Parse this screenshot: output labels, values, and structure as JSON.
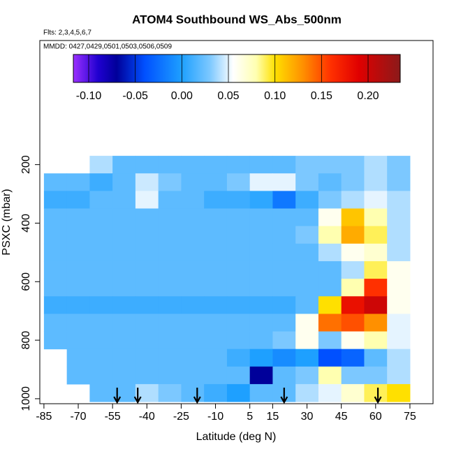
{
  "chart_data": {
    "type": "heatmap",
    "title": "ATOM4 Southbound WS_Abs_500nm",
    "annotations": [
      "Flts: 2,3,4,5,6,7",
      "MMDD: 0427,0429,0501,0503,0506,0509"
    ],
    "x_label": "Latitude (deg N)",
    "y_label": "PSXC (mbar)",
    "xlim": [
      -86.8,
      85.1
    ],
    "xticks": [
      -85,
      -70,
      -55,
      -40,
      -25,
      -10,
      5,
      15,
      30,
      45,
      60,
      75
    ],
    "ylim": [
      1017,
      -224
    ],
    "yticks": [
      200,
      400,
      600,
      800,
      1000
    ],
    "xbins": [
      -85,
      -75,
      -65,
      -55,
      -45,
      -35,
      -25,
      -15,
      -5,
      5,
      15,
      25,
      35,
      45,
      55,
      65,
      75
    ],
    "ybins": [
      170,
      230,
      290,
      350,
      410,
      470,
      530,
      590,
      650,
      710,
      770,
      830,
      890,
      950,
      1010
    ],
    "z": [
      [
        null,
        null,
        0.04,
        0.02,
        0.02,
        0.02,
        0.02,
        0.02,
        0.02,
        0.02,
        0.02,
        0.03,
        0.03,
        0.03,
        0.04,
        0.03
      ],
      [
        0.02,
        0.02,
        0.01,
        0.02,
        0.045,
        0.03,
        0.02,
        0.02,
        0.03,
        0.05,
        0.05,
        0.03,
        0.02,
        0.03,
        0.04,
        0.03
      ],
      [
        0.01,
        0.01,
        0.02,
        0.02,
        0.05,
        0.02,
        0.02,
        0.01,
        0.01,
        0.005,
        -0.02,
        0.01,
        0.03,
        0.04,
        0.05,
        0.04
      ],
      [
        0.02,
        0.02,
        0.02,
        0.02,
        0.02,
        0.02,
        0.02,
        0.02,
        0.02,
        0.02,
        0.02,
        0.02,
        0.06,
        0.11,
        0.08,
        0.04
      ],
      [
        0.02,
        0.02,
        0.02,
        0.02,
        0.02,
        0.02,
        0.02,
        0.02,
        0.02,
        0.02,
        0.02,
        0.03,
        0.08,
        0.12,
        0.09,
        0.04
      ],
      [
        0.02,
        0.02,
        0.02,
        0.02,
        0.02,
        0.02,
        0.02,
        0.02,
        0.02,
        0.02,
        0.02,
        0.02,
        0.04,
        0.06,
        0.07,
        0.04
      ],
      [
        0.02,
        0.02,
        0.02,
        0.02,
        0.02,
        0.02,
        0.02,
        0.02,
        0.02,
        0.02,
        0.02,
        0.02,
        0.02,
        0.04,
        0.09,
        0.06
      ],
      [
        0.02,
        0.02,
        0.02,
        0.02,
        0.02,
        0.02,
        0.02,
        0.02,
        0.02,
        0.02,
        0.02,
        0.02,
        0.02,
        0.08,
        0.16,
        0.06
      ],
      [
        0.01,
        0.01,
        0.01,
        0.01,
        0.01,
        0.01,
        0.01,
        0.01,
        0.01,
        0.01,
        0.01,
        0.02,
        0.1,
        0.18,
        0.2,
        0.06
      ],
      [
        0.02,
        0.02,
        0.02,
        0.02,
        0.02,
        0.02,
        0.02,
        0.02,
        0.02,
        0.02,
        0.02,
        0.06,
        0.14,
        0.15,
        0.13,
        0.05
      ],
      [
        0.02,
        0.02,
        0.02,
        0.02,
        0.02,
        0.02,
        0.02,
        0.02,
        0.02,
        0.02,
        0.03,
        0.06,
        0.03,
        0.06,
        0.08,
        0.05
      ],
      [
        null,
        0.02,
        0.02,
        0.02,
        0.02,
        0.02,
        0.02,
        0.02,
        0.01,
        0.0,
        -0.01,
        0.0,
        -0.04,
        -0.03,
        0.02,
        0.04
      ],
      [
        null,
        0.02,
        0.02,
        0.02,
        0.02,
        0.02,
        0.02,
        0.02,
        0.02,
        -0.07,
        0.02,
        0.03,
        0.08,
        0.03,
        0.03,
        0.04
      ],
      [
        null,
        null,
        0.02,
        0.02,
        0.04,
        0.03,
        0.02,
        0.01,
        0.0,
        0.02,
        0.02,
        0.04,
        0.05,
        0.07,
        0.09,
        0.1
      ]
    ],
    "colorbar_lim": [
      -0.1165,
      0.2345
    ],
    "colorbar_ticks": [
      {
        "value": -0.1,
        "label": "-0.10"
      },
      -0.05,
      {
        "value": 0,
        "label": "0.00"
      },
      0.05,
      {
        "value": 0.1,
        "label": "0.10"
      },
      0.15,
      {
        "value": 0.2,
        "label": "0.20"
      }
    ],
    "colorscale": [
      [
        -0.1165,
        "#9b30ff"
      ],
      [
        -0.09,
        "#2000d0"
      ],
      [
        -0.07,
        "#00009a"
      ],
      [
        -0.04,
        "#0050ff"
      ],
      [
        0,
        "#1ea0ff"
      ],
      [
        0.03,
        "#7cc8ff"
      ],
      [
        0.055,
        "#ffffff"
      ],
      [
        0.08,
        "#ffffb0"
      ],
      [
        0.1,
        "#ffe000"
      ],
      [
        0.13,
        "#ff9000"
      ],
      [
        0.16,
        "#ff3000"
      ],
      [
        0.19,
        "#e00000"
      ],
      [
        0.2345,
        "#8b1a1a"
      ]
    ],
    "markers_x": [
      -53,
      -44,
      -18,
      20,
      61
    ]
  }
}
